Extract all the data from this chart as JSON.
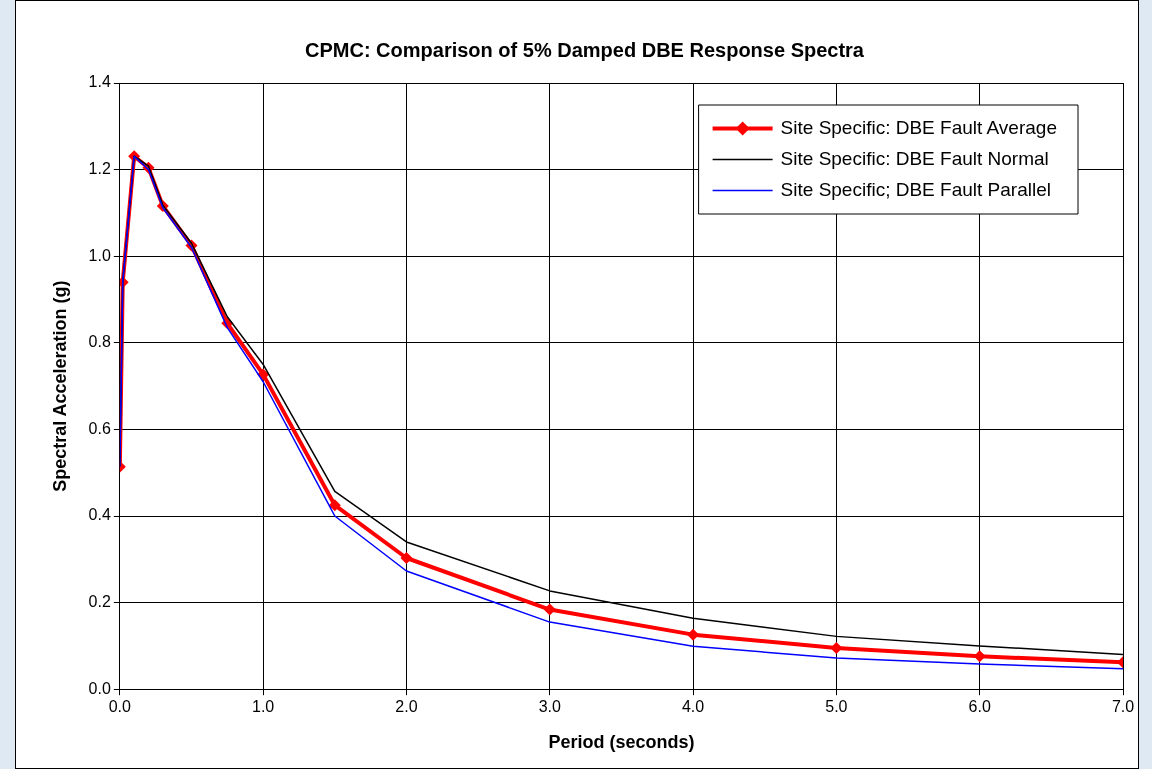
{
  "chart_data": {
    "type": "line",
    "title": "CPMC: Comparison of 5% Damped DBE Response Spectra",
    "xlabel": "Period (seconds)",
    "ylabel": "Spectral Acceleration (g)",
    "x": [
      0,
      0.02,
      0.1,
      0.2,
      0.3,
      0.5,
      0.75,
      1.0,
      1.5,
      2.0,
      3.0,
      4.0,
      5.0,
      6.0,
      7.0
    ],
    "series": [
      {
        "name": "Site Specific: DBE Fault Average",
        "color": "#ff0000",
        "marker": "diamond",
        "values": [
          0.514,
          0.94,
          1.231,
          1.204,
          1.116,
          1.025,
          0.845,
          0.727,
          0.425,
          0.303,
          0.184,
          0.126,
          0.095,
          0.076,
          0.062
        ]
      },
      {
        "name": "Site Specific: DBE Fault Normal",
        "color": "#000000",
        "marker": "none",
        "values": [
          0.514,
          0.94,
          1.231,
          1.208,
          1.118,
          1.03,
          0.86,
          0.75,
          0.457,
          0.34,
          0.227,
          0.164,
          0.122,
          0.1,
          0.08
        ]
      },
      {
        "name": "Site Specific; DBE Fault Parallel",
        "color": "#0000ff",
        "marker": "none",
        "values": [
          0.514,
          0.94,
          1.231,
          1.2,
          1.112,
          1.02,
          0.835,
          0.71,
          0.4,
          0.273,
          0.155,
          0.099,
          0.072,
          0.058,
          0.047
        ]
      }
    ],
    "xlim": [
      0,
      7
    ],
    "xticks": [
      {
        "value": 0,
        "label": "0.0"
      },
      {
        "value": 1,
        "label": "1.0"
      },
      {
        "value": 2,
        "label": "2.0"
      },
      {
        "value": 3,
        "label": "3.0"
      },
      {
        "value": 4,
        "label": "4.0"
      },
      {
        "value": 5,
        "label": "5.0"
      },
      {
        "value": 6,
        "label": "6.0"
      },
      {
        "value": 7,
        "label": "7.0"
      }
    ],
    "ylim": [
      0,
      1.4
    ],
    "yticks": [
      {
        "value": 0,
        "label": "0.0"
      },
      {
        "value": 0.2,
        "label": "0.2"
      },
      {
        "value": 0.4,
        "label": "0.4"
      },
      {
        "value": 0.6,
        "label": "0.6"
      },
      {
        "value": 0.8,
        "label": "0.8"
      },
      {
        "value": 1.0,
        "label": "1.0"
      },
      {
        "value": 1.2,
        "label": "1.2"
      },
      {
        "value": 1.4,
        "label": "1.4"
      }
    ],
    "grid": true,
    "legend": "top right"
  }
}
